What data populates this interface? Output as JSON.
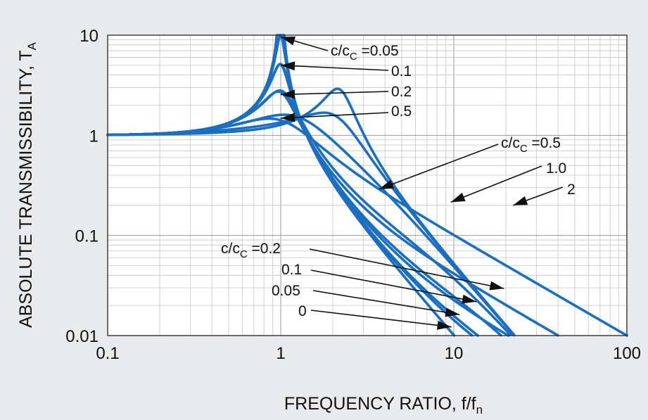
{
  "chart_data": {
    "type": "line",
    "title": "",
    "xlabel": "FREQUENCY RATIO, f/f",
    "xlabel_sub": "n",
    "ylabel": "ABSOLUTE TRANSMISSIBILITY, T",
    "ylabel_sub": "A",
    "x_scale": "log",
    "y_scale": "log",
    "xlim": [
      0.1,
      100
    ],
    "ylim": [
      0.01,
      10
    ],
    "grid": true,
    "x_ticks": [
      {
        "value": 0.1,
        "label": "0.1"
      },
      {
        "value": 1,
        "label": "1"
      },
      {
        "value": 10,
        "label": "10"
      },
      {
        "value": 100,
        "label": "100"
      }
    ],
    "y_ticks": [
      {
        "value": 0.01,
        "label": "0.01"
      },
      {
        "value": 0.1,
        "label": "0.1"
      },
      {
        "value": 1,
        "label": "1"
      },
      {
        "value": 10,
        "label": "10"
      }
    ],
    "series": [
      {
        "family": "viscous",
        "c_cc": 0.05
      },
      {
        "family": "viscous",
        "c_cc": 0.1
      },
      {
        "family": "viscous",
        "c_cc": 0.2
      },
      {
        "family": "viscous",
        "c_cc": 0.5
      },
      {
        "family": "viscous",
        "c_cc": 0
      },
      {
        "family": "elastic",
        "c_cc": 0.05
      },
      {
        "family": "elastic",
        "c_cc": 0.1
      },
      {
        "family": "elastic",
        "c_cc": 0.2
      },
      {
        "family": "elastic",
        "c_cc": 0.5
      },
      {
        "family": "elastic",
        "c_cc": 1.0
      },
      {
        "family": "elastic",
        "c_cc": 2
      }
    ],
    "annotations": {
      "top_group": [
        {
          "prefix": "c/c",
          "sub": "C",
          "text": " =0.05",
          "target": [
            1.0,
            9.6
          ]
        },
        {
          "prefix": "",
          "sub": "",
          "text": "0.1",
          "target": [
            1.0,
            5.0
          ]
        },
        {
          "prefix": "",
          "sub": "",
          "text": "0.2",
          "target": [
            1.0,
            2.55
          ]
        },
        {
          "prefix": "",
          "sub": "",
          "text": "0.5",
          "target": [
            1.0,
            1.48
          ]
        }
      ],
      "mid_group": [
        {
          "prefix": "c/c",
          "sub": "C",
          "text": " =0.5",
          "target": [
            3.7,
            0.29
          ]
        },
        {
          "prefix": "",
          "sub": "",
          "text": "1.0",
          "target": [
            9.6,
            0.215
          ]
        },
        {
          "prefix": "",
          "sub": "",
          "text": "2",
          "target": [
            22,
            0.2
          ]
        }
      ],
      "bottom_group": [
        {
          "prefix": "c/c",
          "sub": "C",
          "text": "  =0.2",
          "target": [
            19.5,
            0.0295
          ]
        },
        {
          "prefix": "",
          "sub": "",
          "text": "0.1",
          "target": [
            13.5,
            0.0218
          ]
        },
        {
          "prefix": "",
          "sub": "",
          "text": "0.05",
          "target": [
            10.8,
            0.0162
          ]
        },
        {
          "prefix": "",
          "sub": "",
          "text": "0",
          "target": [
            9.7,
            0.0122
          ]
        }
      ]
    }
  }
}
